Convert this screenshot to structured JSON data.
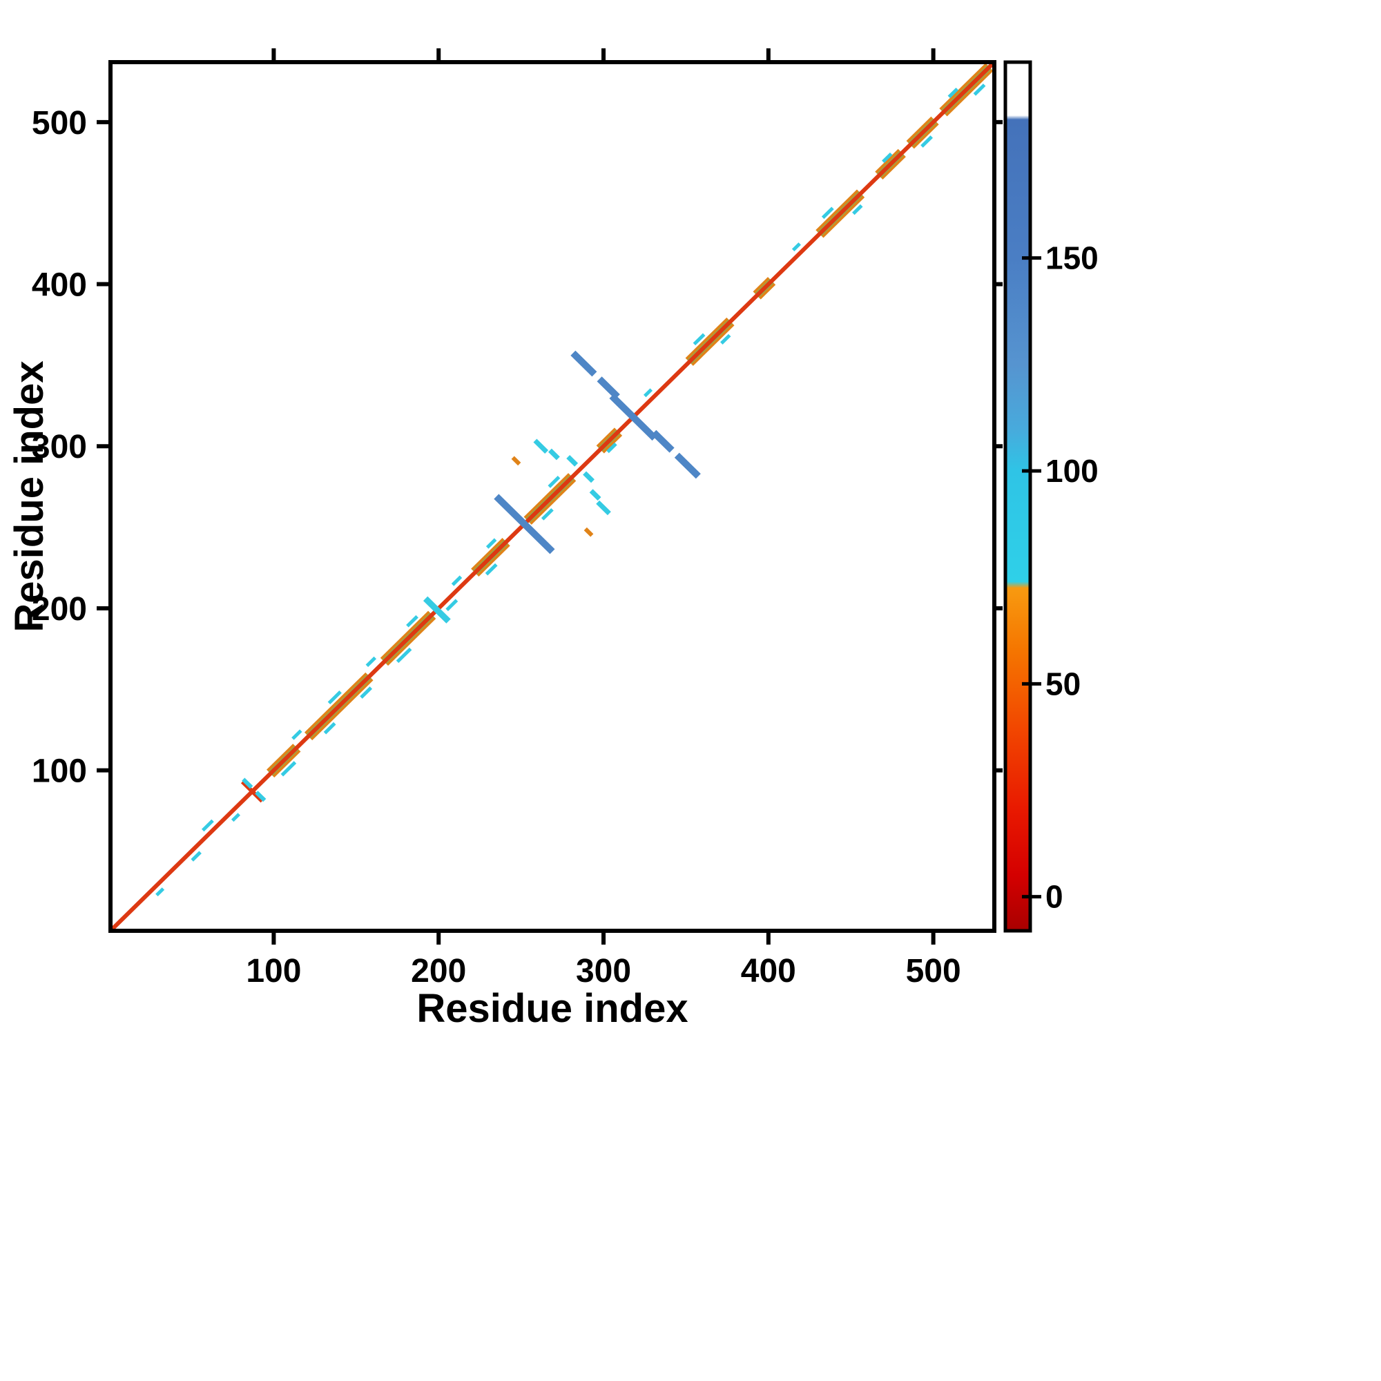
{
  "chart_data": {
    "type": "heatmap",
    "variant": "protein-residue-contact-map",
    "title": "",
    "xlabel": "Residue index",
    "ylabel": "Residue index",
    "xlim": [
      1,
      537
    ],
    "ylim": [
      1,
      537
    ],
    "xticks": [
      100,
      200,
      300,
      400,
      500
    ],
    "yticks": [
      100,
      200,
      300,
      400,
      500
    ],
    "grid": false,
    "legend_position": "right-colorbar",
    "palette": {
      "background": "#ffffff",
      "axis": "#000000",
      "diagonal": "#dd3912",
      "block_outer": "#e08318",
      "block_inner": "#9aa848",
      "speckle": "#35cbe3",
      "cross_blue": "#4e86c6"
    },
    "diagonal": {
      "from": 1,
      "to": 537,
      "color": "#dd3912"
    },
    "diagonal_blocks": [
      [
        98,
        114
      ],
      [
        121,
        158
      ],
      [
        167,
        196
      ],
      [
        222,
        241
      ],
      [
        254,
        281
      ],
      [
        298,
        309
      ],
      [
        352,
        377
      ],
      [
        393,
        402
      ],
      [
        431,
        456
      ],
      [
        467,
        481
      ],
      [
        486,
        501
      ],
      [
        506,
        534
      ]
    ],
    "speckles": [
      {
        "at": 28,
        "len": 4,
        "off": 3
      },
      {
        "at": 50,
        "len": 5,
        "off": 3
      },
      {
        "at": 63,
        "len": 6,
        "off": -3
      },
      {
        "at": 74,
        "len": 4,
        "off": 3
      },
      {
        "at": 105,
        "len": 8,
        "off": 4
      },
      {
        "at": 118,
        "len": 5,
        "off": -4
      },
      {
        "at": 130,
        "len": 6,
        "off": 4
      },
      {
        "at": 141,
        "len": 7,
        "off": -4
      },
      {
        "at": 152,
        "len": 6,
        "off": 4
      },
      {
        "at": 163,
        "len": 5,
        "off": -4
      },
      {
        "at": 175,
        "len": 8,
        "off": 4
      },
      {
        "at": 188,
        "len": 6,
        "off": -4
      },
      {
        "at": 205,
        "len": 6,
        "off": 3
      },
      {
        "at": 214,
        "len": 5,
        "off": -3
      },
      {
        "at": 228,
        "len": 6,
        "off": 4
      },
      {
        "at": 236,
        "len": 5,
        "off": -4
      },
      {
        "at": 262,
        "len": 6,
        "off": 4
      },
      {
        "at": 274,
        "len": 6,
        "off": -4
      },
      {
        "at": 302,
        "len": 5,
        "off": 3
      },
      {
        "at": 330,
        "len": 4,
        "off": -3
      },
      {
        "at": 362,
        "len": 6,
        "off": -4
      },
      {
        "at": 370,
        "len": 5,
        "off": 4
      },
      {
        "at": 420,
        "len": 4,
        "off": -3
      },
      {
        "at": 440,
        "len": 6,
        "off": -4
      },
      {
        "at": 450,
        "len": 5,
        "off": 4
      },
      {
        "at": 475,
        "len": 5,
        "off": -3
      },
      {
        "at": 492,
        "len": 6,
        "off": 4
      },
      {
        "at": 515,
        "len": 5,
        "off": -3
      },
      {
        "at": 524,
        "len": 6,
        "off": 4
      }
    ],
    "features": [
      {
        "x": 252,
        "y": 252,
        "len": 34,
        "color": "#4e86c6",
        "w": 10
      },
      {
        "x": 318,
        "y": 318,
        "len": 26,
        "color": "#4e86c6",
        "w": 10
      },
      {
        "x": 288,
        "y": 351,
        "len": 13,
        "color": "#4e86c6",
        "w": 10
      },
      {
        "x": 351,
        "y": 288,
        "len": 13,
        "color": "#4e86c6",
        "w": 10
      },
      {
        "x": 303,
        "y": 336,
        "len": 11,
        "color": "#4e86c6",
        "w": 10
      },
      {
        "x": 336,
        "y": 303,
        "len": 11,
        "color": "#4e86c6",
        "w": 10
      },
      {
        "x": 262,
        "y": 300,
        "len": 7,
        "color": "#35cbe3",
        "w": 7
      },
      {
        "x": 300,
        "y": 262,
        "len": 7,
        "color": "#35cbe3",
        "w": 7
      },
      {
        "x": 270,
        "y": 295,
        "len": 5,
        "color": "#35cbe3",
        "w": 7
      },
      {
        "x": 295,
        "y": 270,
        "len": 5,
        "color": "#35cbe3",
        "w": 7
      },
      {
        "x": 281,
        "y": 291,
        "len": 5,
        "color": "#35cbe3",
        "w": 7
      },
      {
        "x": 291,
        "y": 281,
        "len": 5,
        "color": "#35cbe3",
        "w": 7
      },
      {
        "x": 247,
        "y": 291,
        "len": 4,
        "color": "#e08318",
        "w": 6
      },
      {
        "x": 291,
        "y": 247,
        "len": 4,
        "color": "#e08318",
        "w": 6
      },
      {
        "x": 87,
        "y": 87,
        "len": 12,
        "color": "#dd3912",
        "w": 6
      },
      {
        "x": 199,
        "y": 199,
        "len": 14,
        "color": "#35cbe3",
        "w": 9
      },
      {
        "x": 92,
        "y": 84,
        "len": 5,
        "color": "#35cbe3",
        "w": 6
      },
      {
        "x": 84,
        "y": 92,
        "len": 5,
        "color": "#35cbe3",
        "w": 6
      }
    ],
    "colorbar": {
      "min": -8,
      "max": 196,
      "ticks": [
        0,
        50,
        100,
        150
      ],
      "stops": [
        {
          "v": -8,
          "color": "#a80000"
        },
        {
          "v": 5,
          "color": "#d40000"
        },
        {
          "v": 20,
          "color": "#e81800"
        },
        {
          "v": 40,
          "color": "#f24800"
        },
        {
          "v": 58,
          "color": "#f57600"
        },
        {
          "v": 72.5,
          "color": "#f89a10"
        },
        {
          "v": 74,
          "color": "#2fd0e8"
        },
        {
          "v": 100,
          "color": "#2fc4e6"
        },
        {
          "v": 110,
          "color": "#48aadc"
        },
        {
          "v": 125,
          "color": "#5694d0"
        },
        {
          "v": 150,
          "color": "#4a7ec4"
        },
        {
          "v": 182.5,
          "color": "#4472ba"
        },
        {
          "v": 183.5,
          "color": "#ffffff"
        },
        {
          "v": 196,
          "color": "#ffffff"
        }
      ]
    }
  }
}
